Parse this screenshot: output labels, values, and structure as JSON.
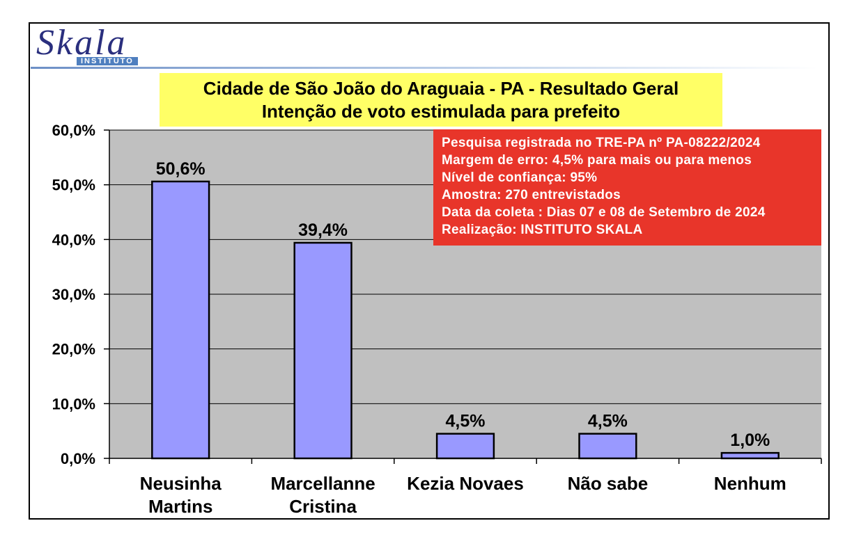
{
  "logo": {
    "word": "Skala",
    "sub": "INSTITUTO"
  },
  "title": {
    "line1": "Cidade de São João do Araguaia - PA - Resultado Geral",
    "line2": "Intenção de voto estimulada para prefeito"
  },
  "info": [
    "Pesquisa registrada no TRE-PA nº PA-08222/2024",
    "Margem de erro: 4,5% para mais ou para menos",
    "Nível de confiança: 95%",
    "Amostra: 270 entrevistados",
    "Data da coleta : Dias 07 e 08 de Setembro de 2024",
    "Realização: INSTITUTO SKALA"
  ],
  "colors": {
    "bar": "#9999ff",
    "plot_bg": "#c0c0c0",
    "title_bg": "#ffff66",
    "info_bg": "#e8352a"
  },
  "chart_data": {
    "type": "bar",
    "categories": [
      [
        "Neusinha",
        "Martins"
      ],
      [
        "Marcellanne",
        "Cristina"
      ],
      [
        "Kezia Novaes"
      ],
      [
        "Não sabe"
      ],
      [
        "Nenhum"
      ]
    ],
    "values": [
      50.6,
      39.4,
      4.5,
      4.5,
      1.0
    ],
    "data_labels": [
      "50,6%",
      "39,4%",
      "4,5%",
      "4,5%",
      "1,0%"
    ],
    "yticks": [
      0,
      10,
      20,
      30,
      40,
      50,
      60
    ],
    "ytick_labels": [
      "0,0%",
      "10,0%",
      "20,0%",
      "30,0%",
      "40,0%",
      "50,0%",
      "60,0%"
    ],
    "ylim": [
      0,
      60
    ],
    "grid": true,
    "legend": false
  }
}
